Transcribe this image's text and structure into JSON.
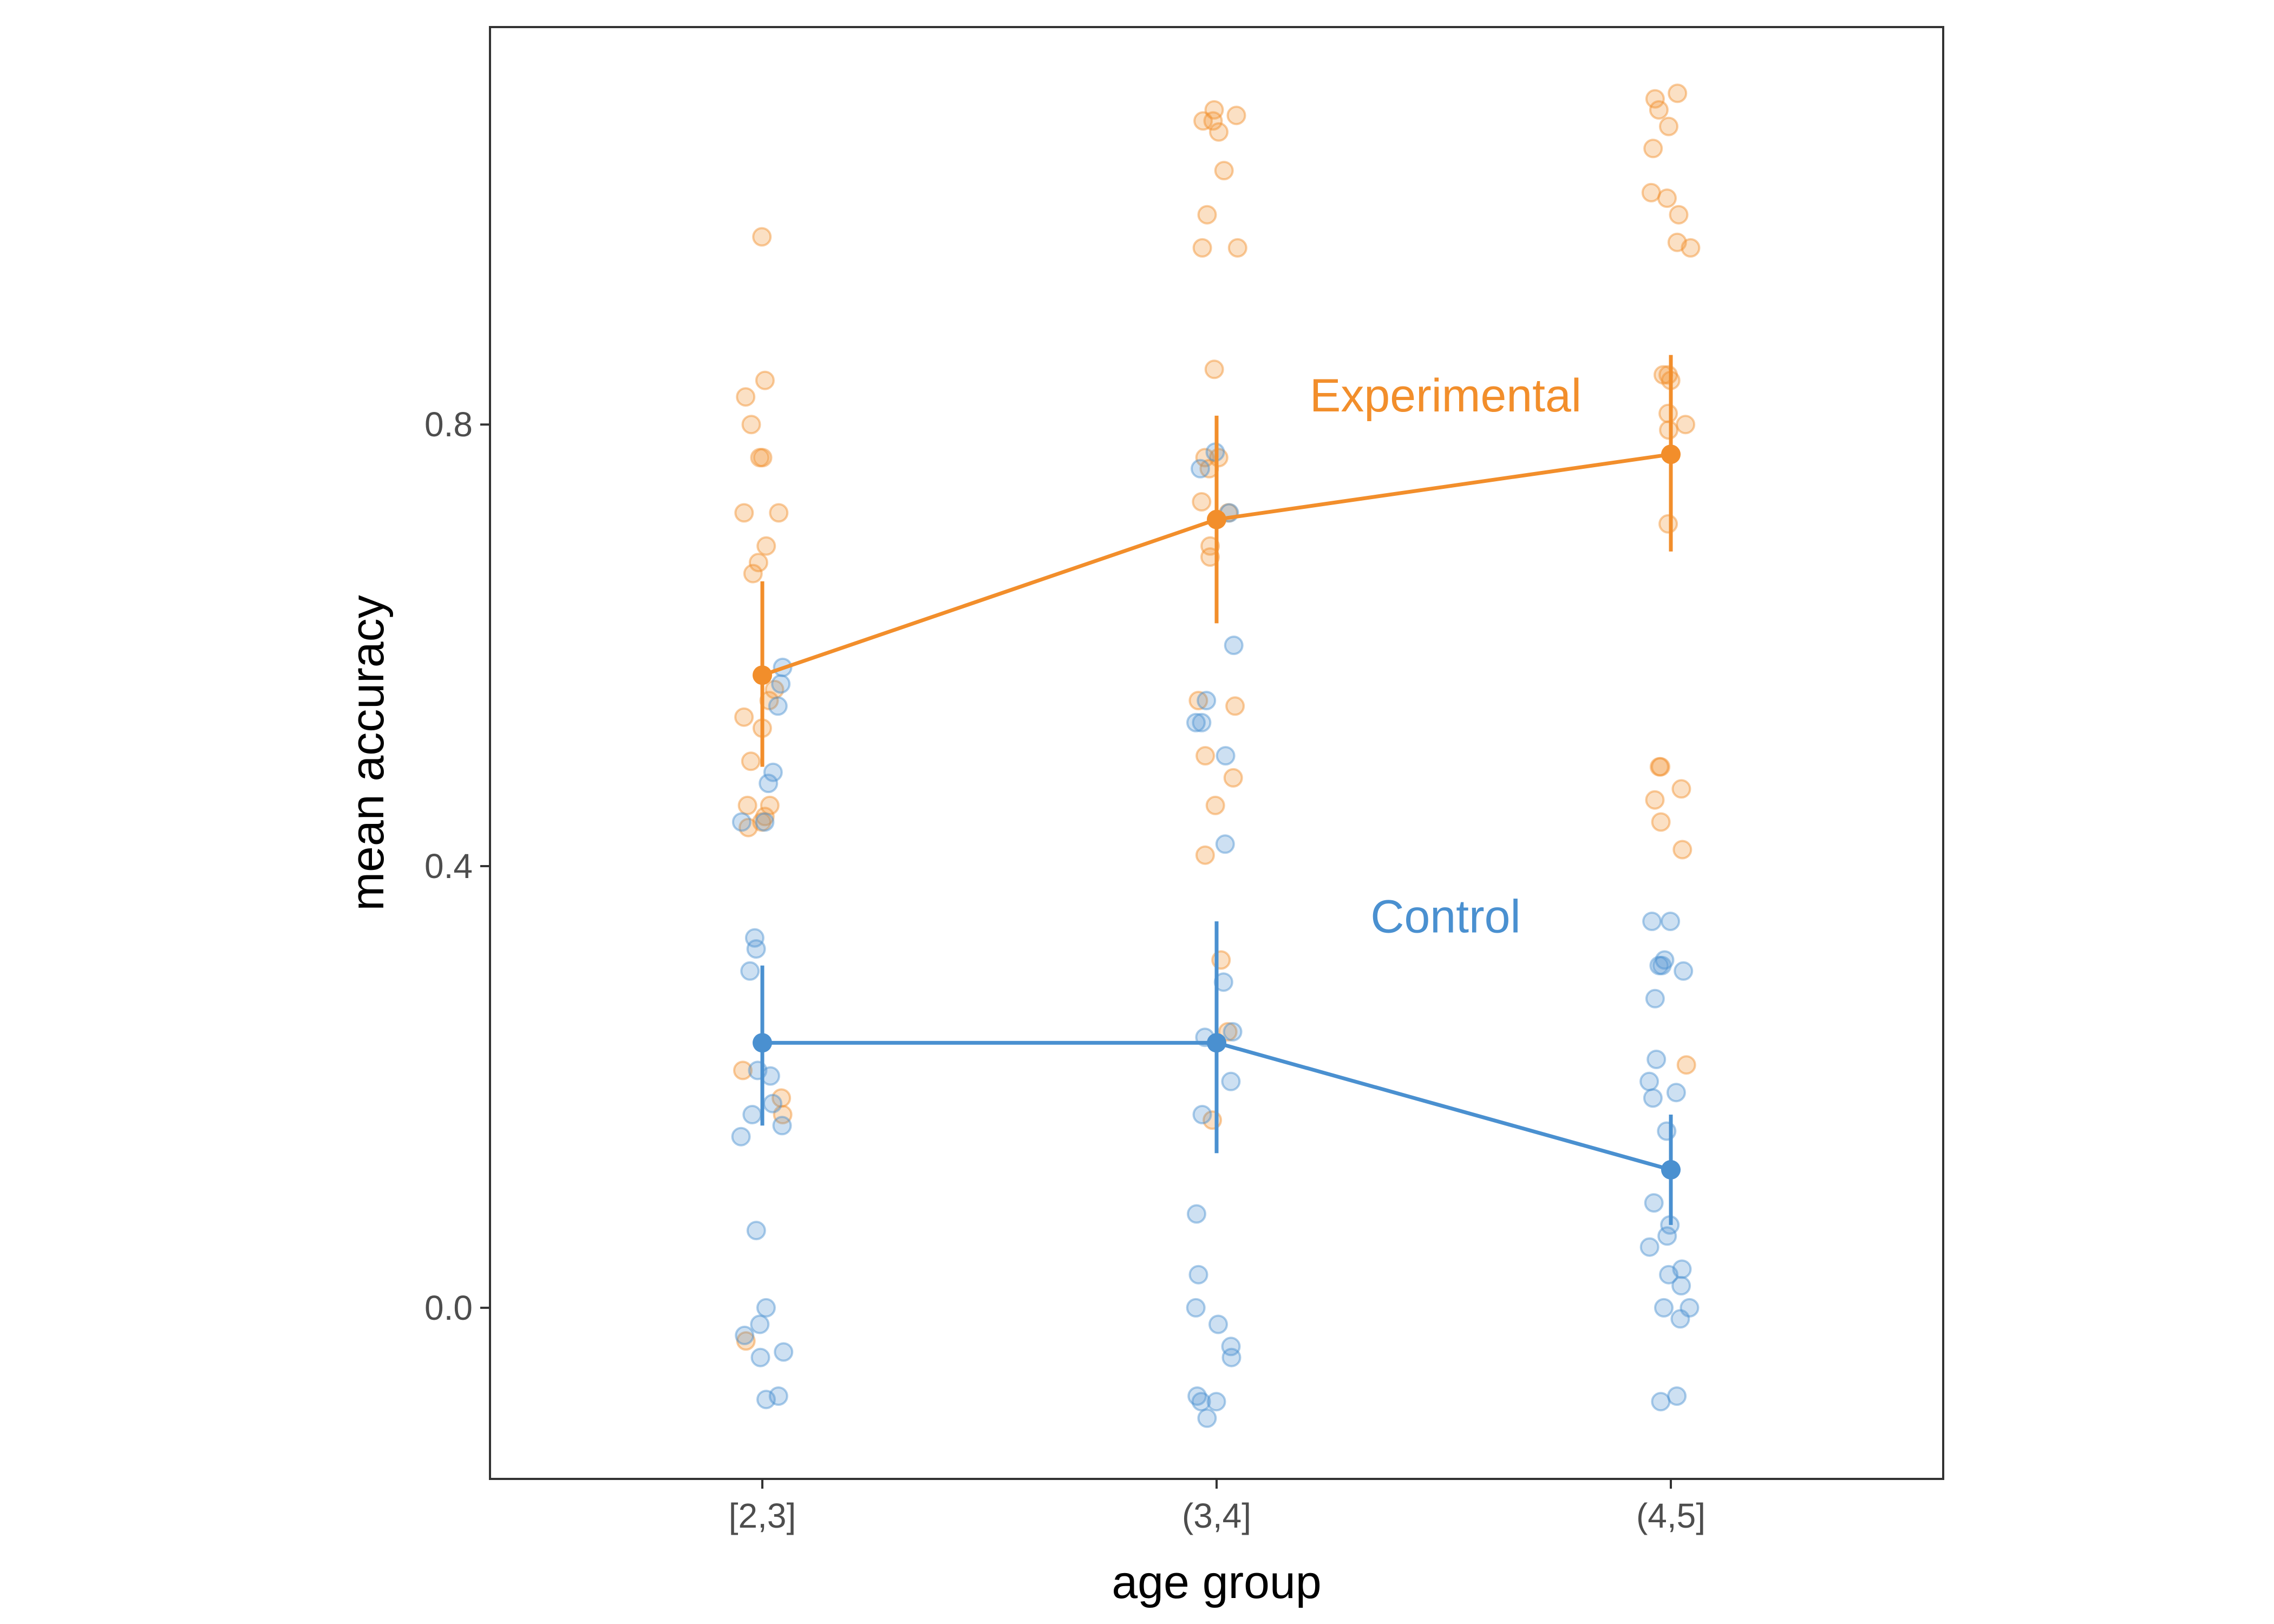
{
  "chart_data": {
    "type": "line",
    "xlabel": "age group",
    "ylabel": "mean accuracy",
    "categories": [
      "[2,3]",
      "(3,4]",
      "(4,5]"
    ],
    "y_ticks": [
      "0.0",
      "0.4",
      "0.8"
    ],
    "y_tick_values": [
      0.0,
      0.4,
      0.8
    ],
    "ylim": [
      -0.155,
      1.16
    ],
    "grid": false,
    "series": [
      {
        "name": "Experimental",
        "color": "#f28e2b",
        "means": [
          0.573,
          0.714,
          0.773
        ],
        "ci_low": [
          0.49,
          0.62,
          0.685
        ],
        "ci_high": [
          0.658,
          0.808,
          0.863
        ],
        "points": [
          [
            0.97,
            0.84,
            0.825,
            0.8,
            0.77,
            0.77,
            0.72,
            0.72,
            0.69,
            0.675,
            0.665,
            0.56,
            0.55,
            0.535,
            0.525,
            0.495,
            0.455,
            0.455,
            0.445,
            0.44,
            0.435,
            0.215,
            0.19,
            0.175,
            -0.03
          ],
          [
            1.085,
            1.08,
            1.075,
            1.075,
            1.065,
            1.03,
            0.99,
            0.96,
            0.96,
            0.85,
            0.77,
            0.77,
            0.76,
            0.73,
            0.72,
            0.69,
            0.68,
            0.55,
            0.545,
            0.5,
            0.48,
            0.455,
            0.41,
            0.315,
            0.17,
            0.25
          ],
          [
            1.1,
            1.095,
            1.085,
            1.07,
            1.05,
            1.01,
            1.005,
            0.99,
            0.965,
            0.96,
            0.845,
            0.845,
            0.84,
            0.81,
            0.8,
            0.795,
            0.71,
            0.49,
            0.49,
            0.47,
            0.46,
            0.44,
            0.415,
            0.22
          ]
        ]
      },
      {
        "name": "Control",
        "color": "#4a90d0",
        "means": [
          0.24,
          0.24,
          0.125
        ],
        "ci_low": [
          0.165,
          0.14,
          0.075
        ],
        "ci_high": [
          0.31,
          0.35,
          0.175
        ],
        "points": [
          [
            0.58,
            0.565,
            0.545,
            0.485,
            0.475,
            0.44,
            0.44,
            0.335,
            0.325,
            0.305,
            0.215,
            0.21,
            0.185,
            0.175,
            0.165,
            0.155,
            0.07,
            0.0,
            -0.015,
            -0.025,
            -0.04,
            -0.045,
            -0.08,
            -0.083
          ],
          [
            0.775,
            0.76,
            0.72,
            0.6,
            0.55,
            0.53,
            0.53,
            0.5,
            0.42,
            0.295,
            0.25,
            0.245,
            0.205,
            0.175,
            0.085,
            0.03,
            0.0,
            -0.015,
            -0.035,
            -0.045,
            -0.085,
            -0.085,
            -0.08,
            -0.1
          ],
          [
            0.35,
            0.35,
            0.315,
            0.31,
            0.31,
            0.305,
            0.28,
            0.225,
            0.205,
            0.195,
            0.19,
            0.16,
            0.095,
            0.075,
            0.065,
            0.055,
            0.035,
            0.03,
            0.02,
            0.0,
            0.0,
            -0.01,
            -0.08,
            -0.085
          ]
        ]
      }
    ]
  }
}
